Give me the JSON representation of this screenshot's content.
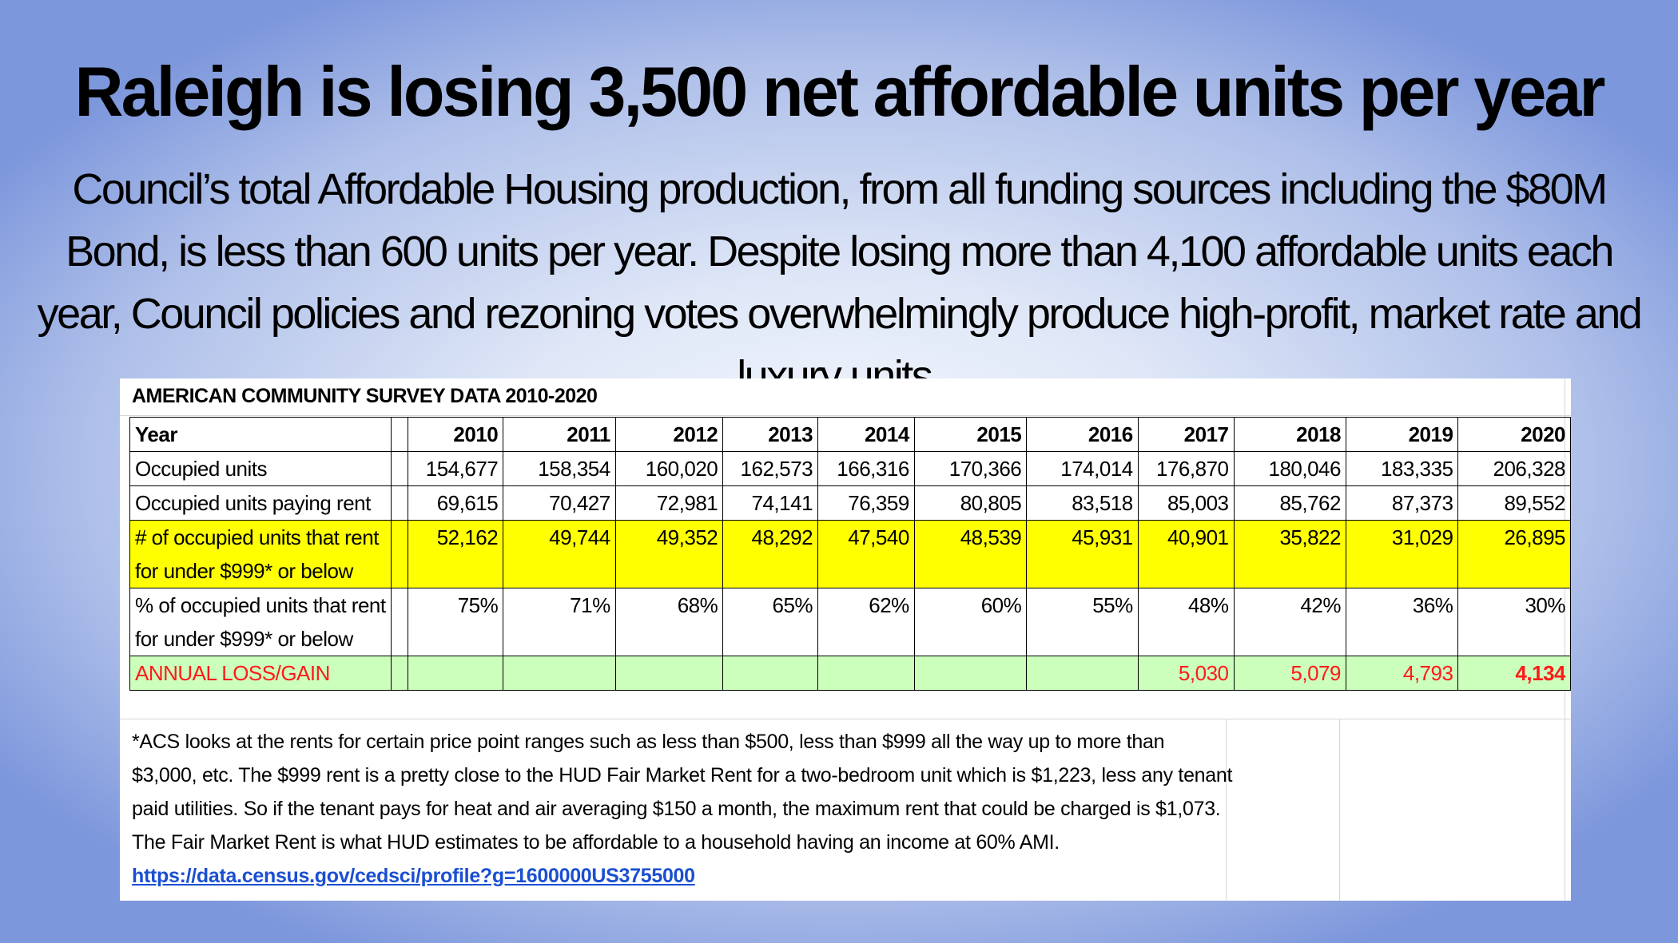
{
  "slide": {
    "title": "Raleigh is losing 3,500 net affordable units per year",
    "subtitle": "Council’s total Affordable Housing production, from all funding sources including the $80M Bond, is less than 600 units per year. Despite losing more than 4,100 affordable units each year, Council policies and rezoning votes overwhelmingly produce high-profit, market rate and luxury units."
  },
  "table": {
    "title": "AMERICAN COMMUNITY SURVEY DATA 2010-2020",
    "header_label": "Year",
    "years": [
      "2010",
      "2011",
      "2012",
      "2013",
      "2014",
      "2015",
      "2016",
      "2017",
      "2018",
      "2019",
      "2020"
    ],
    "rows": [
      {
        "label": "Occupied units",
        "values": [
          "154,677",
          "158,354",
          "160,020",
          "162,573",
          "166,316",
          "170,366",
          "174,014",
          "176,870",
          "180,046",
          "183,335",
          "206,328"
        ]
      },
      {
        "label": "Occupied units paying rent",
        "values": [
          "69,615",
          "70,427",
          "72,981",
          "74,141",
          "76,359",
          "80,805",
          "83,518",
          "85,003",
          "85,762",
          "87,373",
          "89,552"
        ]
      },
      {
        "label_line1": "# of occupied units that rent",
        "label_line2": "for under $999* or below",
        "values": [
          "52,162",
          "49,744",
          "49,352",
          "48,292",
          "47,540",
          "48,539",
          "45,931",
          "40,901",
          "35,822",
          "31,029",
          "26,895"
        ],
        "highlight": "#ffff00"
      },
      {
        "label_line1": "% of occupied units that rent",
        "label_line2": "for under $999* or below",
        "values": [
          "75%",
          "71%",
          "68%",
          "65%",
          "62%",
          "60%",
          "55%",
          "48%",
          "42%",
          "36%",
          "30%"
        ]
      },
      {
        "label": "ANNUAL LOSS/GAIN",
        "values": [
          "",
          "",
          "",
          "",
          "",
          "",
          "",
          "5,030",
          "5,079",
          "4,793",
          "4,134"
        ],
        "highlight": "#ccffbb",
        "text_color": "#ff1a1a"
      }
    ]
  },
  "footnote": {
    "text": "*ACS looks at the rents for certain price point ranges such as less than $500, less than $999 all the way up to more than $3,000, etc.  The $999 rent is a pretty close to the HUD Fair Market Rent for a two-bedroom unit which is $1,223, less any tenant paid utilities.  So if the tenant pays for heat and air averaging $150 a month, the maximum rent that could be charged is $1,073.  The Fair Market Rent is what HUD estimates to be affordable to a household having an income at 60% AMI.",
    "link": "https://data.census.gov/cedsci/profile?g=1600000US3755000"
  }
}
